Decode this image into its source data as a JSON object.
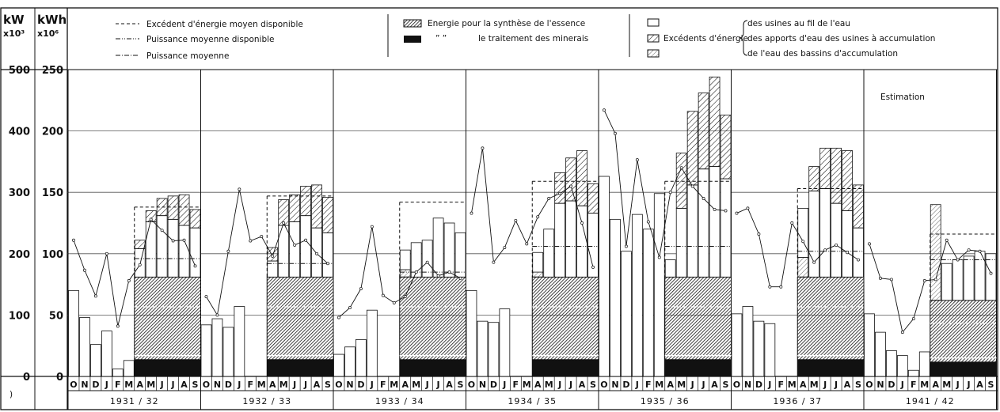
{
  "units": {
    "left": {
      "label": "kW",
      "scale": "x10³"
    },
    "right": {
      "label": "kWh",
      "scale": "x10⁶"
    }
  },
  "axis_kw_ticks": [
    "0",
    "100",
    "200",
    "300",
    "400",
    "500"
  ],
  "axis_kwh_ticks": [
    "0",
    "50",
    "100",
    "150",
    "200",
    "250"
  ],
  "legend": {
    "lines": [
      {
        "text": "Excédent d'énergie moyen disponible",
        "style": "dashed"
      },
      {
        "text": "Puissance moyenne disponible",
        "style": "dashdotdot"
      },
      {
        "text": "Puissance moyenne",
        "style": "dashdot"
      }
    ],
    "energy": [
      {
        "text": "Energie pour la synthèse de l'essence"
      },
      {
        "text": "le traitement des minerais",
        "ditto": "”      ”"
      }
    ],
    "excedents_label": "Excédents d'énergie",
    "excedents": [
      {
        "text": "des usines au fil de l'eau"
      },
      {
        "text": "des apports d'eau des usines à accumulation"
      },
      {
        "text": "de l'eau des bassins d'accumulation"
      }
    ]
  },
  "annotation": "Estimation",
  "months": [
    "O",
    "N",
    "D",
    "J",
    "F",
    "M",
    "A",
    "M",
    "J",
    "J",
    "A",
    "S"
  ],
  "years": [
    "1931 / 32",
    "1932 / 33",
    "1933 / 34",
    "1934 / 35",
    "1935 / 36",
    "1936 / 37",
    "1941 / 42"
  ],
  "footer_mark": ")",
  "colors": {
    "ink": "#111111",
    "grid": "#555555",
    "background": "#ffffff"
  },
  "chart_data": {
    "type": "bar",
    "stacked": true,
    "y_left": {
      "label": "kW x10³",
      "range": [
        0,
        500
      ]
    },
    "y_right": {
      "label": "kWh x10⁶",
      "range": [
        0,
        250
      ]
    },
    "grid": true,
    "years": [
      {
        "label": "1931 / 32",
        "winter": [
          70,
          48,
          26,
          37,
          6,
          13
        ],
        "summer": {
          "synthese": 14,
          "minerais": 3,
          "total_base": 81,
          "fil": [
            23,
            45,
            50,
            47,
            42,
            40
          ],
          "apports": [
            7,
            9,
            14,
            19,
            25,
            15
          ],
          "bassins": [
            0,
            0,
            0,
            0,
            0,
            0
          ]
        },
        "after_summer": [
          58,
          36
        ],
        "lines": {
          "excedent_moyen": [
            57,
            57
          ],
          "puissance_disponible": [
            96,
            96
          ],
          "puissance_moyenne": [
            222,
            173,
            131,
            200,
            82,
            156,
            182,
            256,
            238,
            221,
            222,
            180,
            175,
            170
          ]
        }
      },
      {
        "label": "1932 / 33",
        "winter": [
          42,
          47,
          40,
          57,
          0,
          0
        ],
        "summer": {
          "synthese": 14,
          "minerais": 3,
          "total_base": 81,
          "fil": [
            13,
            42,
            45,
            50,
            40,
            36
          ],
          "apports": [
            11,
            21,
            22,
            24,
            35,
            29
          ],
          "bassins": [
            0,
            0,
            0,
            0,
            0,
            0
          ]
        },
        "after_summer": [
          62,
          0
        ],
        "lines": {
          "excedent_moyen": [
            66,
            66
          ],
          "puissance_disponible": [
            92,
            92
          ],
          "puissance_moyenne": [
            130,
            100,
            204,
            305,
            221,
            228,
            196,
            250,
            214,
            222,
            200,
            184
          ]
        }
      },
      {
        "label": "1933 / 34",
        "winter": [
          18,
          24,
          30,
          54,
          0,
          0
        ],
        "summer": {
          "synthese": 14,
          "minerais": 3,
          "total_base": 81,
          "fil": [
            16,
            28,
            30,
            48,
            44,
            36
          ],
          "apports": [
            0,
            0,
            0,
            0,
            0,
            0
          ],
          "bassins": [
            6,
            0,
            0,
            0,
            0,
            0
          ]
        },
        "after_summer": [
          0,
          0
        ],
        "lines": {
          "excedent_moyen": [
            61,
            61
          ],
          "puissance_disponible": [
            85,
            85
          ],
          "puissance_moyenne": [
            96,
            112,
            143,
            244,
            132,
            120,
            130,
            170,
            186,
            164,
            170,
            160
          ]
        }
      },
      {
        "label": "1934 / 35",
        "winter": [
          70,
          45,
          44,
          55,
          0,
          0
        ],
        "summer": {
          "synthese": 14,
          "minerais": 3,
          "total_base": 81,
          "fil": [
            16,
            39,
            60,
            62,
            58,
            52
          ],
          "apports": [
            0,
            0,
            25,
            35,
            45,
            24
          ],
          "bassins": [
            4,
            0,
            0,
            0,
            0,
            0
          ]
        },
        "after_summer": [
          0,
          0
        ],
        "lines": {
          "excedent_moyen": [
            78,
            78
          ],
          "puissance_disponible": [
            106,
            106
          ],
          "puissance_moyenne": [
            266,
            372,
            186,
            210,
            254,
            216,
            260,
            290,
            298,
            310,
            250,
            178
          ]
        }
      },
      {
        "label": "1935 / 36",
        "winter": [
          163,
          128,
          102,
          132,
          120,
          149
        ],
        "summer": {
          "synthese": 14,
          "minerais": 3,
          "total_base": 81,
          "fil": [
            14,
            56,
            75,
            88,
            90,
            80
          ],
          "apports": [
            0,
            45,
            60,
            62,
            73,
            52
          ],
          "bassins": [
            0,
            0,
            0,
            0,
            0,
            0
          ]
        },
        "after_summer": [
          0,
          0
        ],
        "lines": {
          "excedent_moyen": [
            78,
            78
          ],
          "puissance_disponible": [
            106,
            106
          ],
          "puissance_moyenne": [
            434,
            396,
            212,
            353,
            252,
            194,
            300,
            340,
            310,
            290,
            272,
            270
          ]
        }
      },
      {
        "label": "1936 / 37",
        "winter": [
          51,
          57,
          45,
          43,
          0,
          0
        ],
        "summer": {
          "synthese": 14,
          "minerais": 3,
          "total_base": 81,
          "fil": [
            40,
            70,
            72,
            60,
            54,
            40
          ],
          "apports": [
            0,
            20,
            33,
            45,
            49,
            35
          ],
          "bassins": [
            16,
            0,
            0,
            0,
            0,
            0
          ]
        },
        "after_summer": [
          0,
          0
        ],
        "lines": {
          "excedent_moyen": [
            72,
            72
          ],
          "puissance_disponible": [
            102,
            102
          ],
          "puissance_moyenne": [
            266,
            274,
            232,
            146,
            146,
            250,
            220,
            186,
            206,
            214,
            202,
            190
          ]
        }
      },
      {
        "label": "1941 / 42",
        "winter": [
          51,
          36,
          21,
          17,
          5,
          20
        ],
        "summer": {
          "synthese": 12,
          "minerais": 3,
          "total_base": 62,
          "fil": [
            0,
            30,
            33,
            36,
            40,
            38
          ],
          "apports": [
            0,
            0,
            0,
            0,
            0,
            0
          ],
          "bassins": [
            78,
            0,
            0,
            0,
            0,
            0
          ]
        },
        "after_summer": [
          0,
          0
        ],
        "lines": {
          "excedent_moyen": [
            54,
            54
          ],
          "puissance_disponible": [
            95,
            95
          ],
          "puissance_moyenne": [
            216,
            160,
            158,
            72,
            94,
            156,
            158,
            222,
            190,
            206,
            204,
            168
          ]
        }
      }
    ]
  }
}
